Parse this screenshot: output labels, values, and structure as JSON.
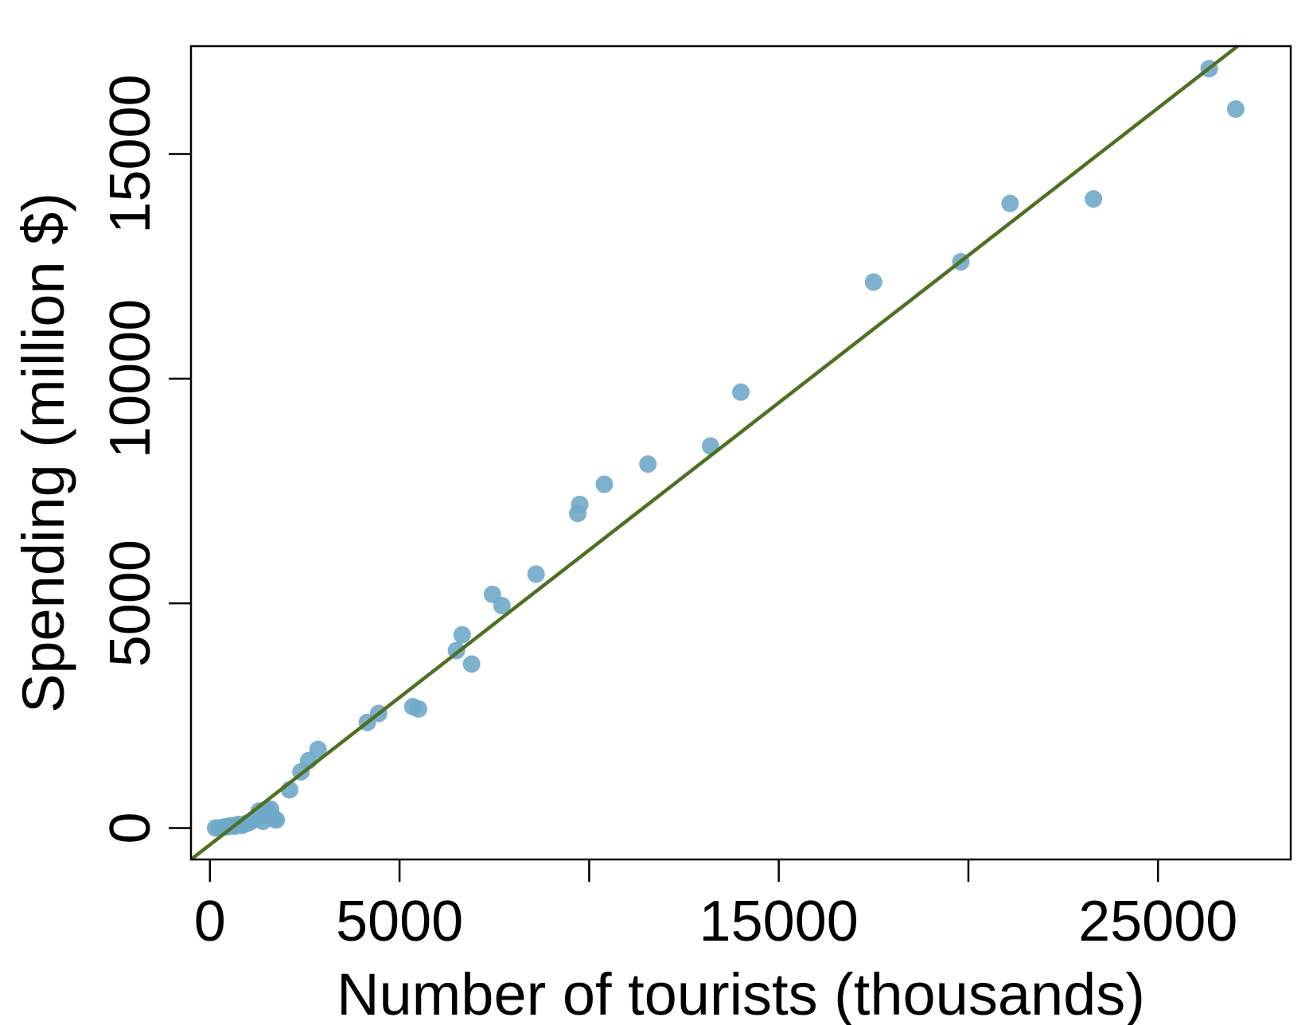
{
  "chart_data": {
    "type": "scatter",
    "title": "",
    "xlabel": "Number of tourists (thousands)",
    "ylabel": "Spending (million $)",
    "xlim": [
      -500,
      28500
    ],
    "ylim": [
      -700,
      17400
    ],
    "xticks": [
      0,
      5000,
      10000,
      15000,
      20000,
      25000
    ],
    "xtick_labels": [
      "0",
      "5000",
      "",
      "15000",
      "",
      "25000"
    ],
    "yticks": [
      0,
      5000,
      10000,
      15000
    ],
    "ytick_labels": [
      "0",
      "5000",
      "10000",
      "15000"
    ],
    "grid": false,
    "legend": "none",
    "colors": {
      "points": "#6fa8c9",
      "fit_line": "#4f7021",
      "axes": "#000000"
    },
    "fit_line": {
      "x": [
        -500,
        27100
      ],
      "y": [
        -700,
        17400
      ]
    },
    "points": {
      "x": [
        150,
        250,
        350,
        450,
        550,
        650,
        750,
        850,
        950,
        1050,
        1150,
        1250,
        1350,
        1450,
        1550,
        1650,
        1700,
        1750,
        1300,
        1500,
        1400,
        1600,
        2100,
        2400,
        2600,
        2850,
        4150,
        4450,
        5350,
        5500,
        6500,
        6650,
        6900,
        7450,
        7700,
        8600,
        9700,
        9750,
        10400,
        11550,
        13200,
        14000,
        17500,
        19800,
        21100,
        23300,
        26350,
        27050
      ],
      "y": [
        0,
        0,
        20,
        30,
        50,
        40,
        80,
        60,
        100,
        130,
        180,
        230,
        300,
        330,
        280,
        250,
        200,
        180,
        380,
        400,
        150,
        420,
        850,
        1250,
        1500,
        1750,
        2350,
        2550,
        2700,
        2650,
        3950,
        4300,
        3650,
        5200,
        4950,
        5650,
        7000,
        7200,
        7650,
        8100,
        8500,
        9700,
        12150,
        12600,
        13900,
        14000,
        16900,
        16000
      ]
    }
  }
}
